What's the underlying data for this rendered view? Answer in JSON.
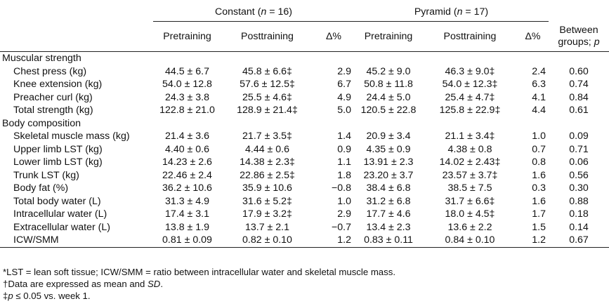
{
  "header": {
    "group1_name": "Constant",
    "group1_n": "(n = 16)",
    "group2_name": "Pyramid",
    "group2_n": "(n = 17)",
    "between_line1": "Between",
    "between_line2": "groups; p",
    "pre": "Pretraining",
    "post": "Posttraining",
    "delta": "Δ%"
  },
  "sections": [
    {
      "title": "Muscular strength",
      "rows": [
        {
          "label": "Chest press (kg)",
          "c_pre": "44.5 ± 6.7",
          "c_post": "45.8 ± 6.6‡",
          "c_d": "2.9",
          "p_pre": "45.2 ± 9.0",
          "p_post": "46.3 ± 9.0‡",
          "p_d": "2.4",
          "p": "0.60"
        },
        {
          "label": "Knee extension (kg)",
          "c_pre": "54.0 ± 12.8",
          "c_post": "57.6 ± 12.5‡",
          "c_d": "6.7",
          "p_pre": "50.8 ± 11.8",
          "p_post": "54.0 ± 12.3‡",
          "p_d": "6.3",
          "p": "0.74"
        },
        {
          "label": "Preacher curl (kg)",
          "c_pre": "24.3 ± 3.8",
          "c_post": "25.5 ± 4.6‡",
          "c_d": "4.9",
          "p_pre": "24.4 ± 5.0",
          "p_post": "25.4 ± 4.7‡",
          "p_d": "4.1",
          "p": "0.84"
        },
        {
          "label": "Total strength (kg)",
          "c_pre": "122.8 ± 21.0",
          "c_post": "128.9 ± 21.4‡",
          "c_d": "5.0",
          "p_pre": "120.5 ± 22.8",
          "p_post": "125.8 ± 22.9‡",
          "p_d": "4.4",
          "p": "0.61"
        }
      ]
    },
    {
      "title": "Body composition",
      "rows": [
        {
          "label": "Skeletal muscle mass (kg)",
          "c_pre": "21.4 ± 3.6",
          "c_post": "21.7 ± 3.5‡",
          "c_d": "1.4",
          "p_pre": "20.9 ± 3.4",
          "p_post": "21.1 ± 3.4‡",
          "p_d": "1.0",
          "p": "0.09"
        },
        {
          "label": "Upper limb LST (kg)",
          "c_pre": "4.40 ± 0.6",
          "c_post": "4.44 ± 0.6",
          "c_d": "0.9",
          "p_pre": "4.35 ± 0.9",
          "p_post": "4.38 ± 0.8",
          "p_d": "0.7",
          "p": "0.71"
        },
        {
          "label": "Lower limb LST (kg)",
          "c_pre": "14.23 ± 2.6",
          "c_post": "14.38 ± 2.3‡",
          "c_d": "1.1",
          "p_pre": "13.91 ± 2.3",
          "p_post": "14.02 ± 2.43‡",
          "p_d": "0.8",
          "p": "0.06"
        },
        {
          "label": "Trunk LST (kg)",
          "c_pre": "22.46 ± 2.4",
          "c_post": "22.86 ± 2.5‡",
          "c_d": "1.8",
          "p_pre": "23.20 ± 3.7",
          "p_post": "23.57 ± 3.7‡",
          "p_d": "1.6",
          "p": "0.56"
        },
        {
          "label": "Body fat (%)",
          "c_pre": "36.2 ± 10.6",
          "c_post": "35.9 ± 10.6",
          "c_d": "−0.8",
          "p_pre": "38.4 ± 6.8",
          "p_post": "38.5 ± 7.5",
          "p_d": "0.3",
          "p": "0.30"
        },
        {
          "label": "Total body water (L)",
          "c_pre": "31.3 ± 4.9",
          "c_post": "31.6 ± 5.2‡",
          "c_d": "1.0",
          "p_pre": "31.2 ± 6.8",
          "p_post": "31.7 ± 6.6‡",
          "p_d": "1.6",
          "p": "0.88"
        },
        {
          "label": "Intracellular water (L)",
          "c_pre": "17.4 ± 3.1",
          "c_post": "17.9 ± 3.2‡",
          "c_d": "2.9",
          "p_pre": "17.7 ± 4.6",
          "p_post": "18.0 ± 4.5‡",
          "p_d": "1.7",
          "p": "0.18"
        },
        {
          "label": "Extracellular water (L)",
          "c_pre": "13.8 ± 1.9",
          "c_post": "13.7 ± 2.1",
          "c_d": "−0.7",
          "p_pre": "13.4 ± 2.3",
          "p_post": "13.6 ± 2.2",
          "p_d": "1.5",
          "p": "0.14"
        },
        {
          "label": "ICW/SMM",
          "c_pre": "0.81 ± 0.09",
          "c_post": "0.82 ± 0.10",
          "c_d": "1.2",
          "p_pre": "0.83 ± 0.11",
          "p_post": "0.84 ± 0.10",
          "p_d": "1.2",
          "p": "0.67"
        }
      ]
    }
  ],
  "footnotes": {
    "note1": "*LST = lean soft tissue; ICW/SMM = ratio between intracellular water and skeletal muscle mass.",
    "note2_prefix": "†Data are expressed as mean and ",
    "note2_italic": "SD",
    "note2_suffix": ".",
    "note3_prefix": "‡",
    "note3_italic": "p",
    "note3_suffix": " ≤ 0.05 vs. week 1."
  }
}
